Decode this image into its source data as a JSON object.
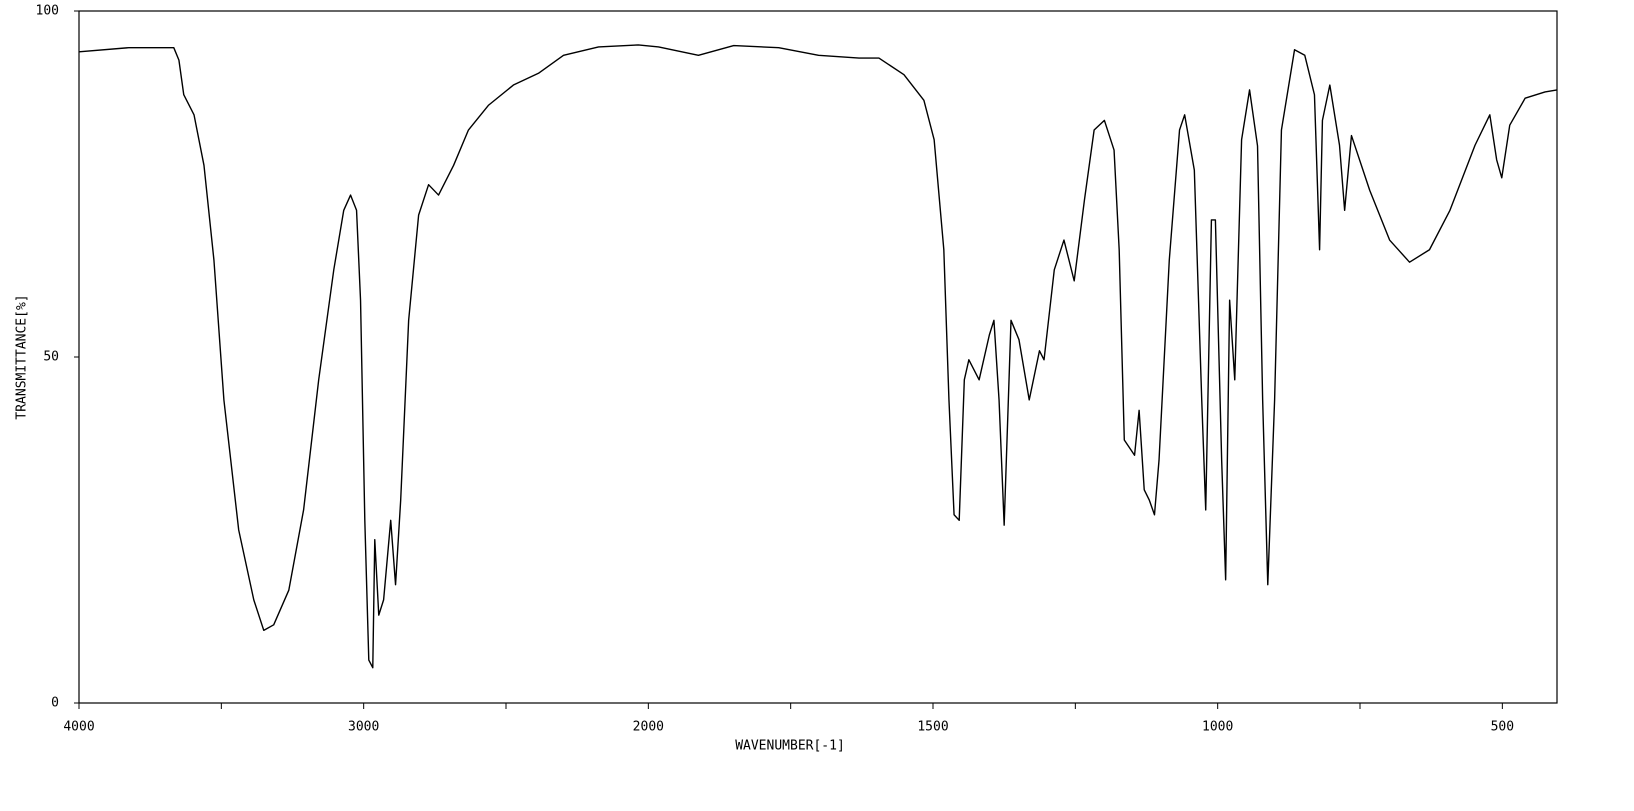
{
  "chart_data": {
    "type": "line",
    "xlabel": "WAVENUMBER[-1]",
    "ylabel": "TRANSMITTANCE[%]",
    "color": "#000000",
    "xlim": [
      4000,
      404
    ],
    "ylim": [
      0,
      100
    ],
    "xticks": [
      4000,
      3000,
      2000,
      1500,
      1000,
      500
    ],
    "xminorticks": [
      3500,
      2500,
      1750,
      1250,
      750
    ],
    "yticks": [
      0,
      50,
      100
    ],
    "x": [
      4000,
      3825,
      3667,
      3649,
      3632,
      3596,
      3561,
      3526,
      3491,
      3439,
      3386,
      3351,
      3316,
      3263,
      3211,
      3158,
      3105,
      3070,
      3046,
      3025,
      3011,
      2996,
      2982,
      2968,
      2961,
      2947,
      2930,
      2905,
      2888,
      2870,
      2842,
      2807,
      2772,
      2737,
      2684,
      2632,
      2561,
      2474,
      2386,
      2298,
      2175,
      2035,
      1982,
      1912,
      1850,
      1771,
      1701,
      1630,
      1595,
      1551,
      1516,
      1498,
      1481,
      1472,
      1463,
      1454,
      1445,
      1437,
      1419,
      1401,
      1393,
      1384,
      1375,
      1363,
      1349,
      1331,
      1313,
      1305,
      1287,
      1270,
      1252,
      1234,
      1217,
      1199,
      1182,
      1173,
      1164,
      1146,
      1138,
      1129,
      1120,
      1111,
      1103,
      1085,
      1067,
      1058,
      1041,
      1028,
      1021,
      1011,
      1004,
      993,
      986,
      979,
      970,
      958,
      944,
      930,
      921,
      912,
      900,
      888,
      865,
      847,
      830,
      821,
      816,
      803,
      786,
      777,
      765,
      733,
      698,
      663,
      628,
      592,
      548,
      522,
      510,
      501,
      487,
      460,
      425,
      404
    ],
    "values": [
      94.1,
      94.7,
      94.7,
      92.9,
      87.9,
      85,
      77.7,
      64,
      43.8,
      25,
      14.9,
      10.5,
      11.3,
      16.3,
      27.9,
      46.7,
      62.6,
      71.2,
      73.4,
      71.2,
      58.2,
      26.4,
      6.2,
      5.1,
      23.6,
      12.7,
      14.9,
      26.4,
      17.1,
      29.3,
      55.3,
      70.5,
      74.9,
      73.4,
      77.7,
      82.8,
      86.4,
      89.3,
      91,
      93.6,
      94.8,
      95.1,
      94.8,
      93.6,
      95,
      94.7,
      93.6,
      93.2,
      93.2,
      90.8,
      87.1,
      81.4,
      65.5,
      43.8,
      27.2,
      26.4,
      46.7,
      49.6,
      46.7,
      53.2,
      55.3,
      43.8,
      25.7,
      55.3,
      52.5,
      43.8,
      50.9,
      49.6,
      62.6,
      66.9,
      61,
      72.7,
      82.8,
      84.2,
      79.9,
      65.5,
      38,
      35.8,
      42.3,
      30.8,
      29.3,
      27.2,
      35.1,
      64,
      82.8,
      85,
      77,
      43.8,
      27.9,
      69.8,
      69.8,
      35.1,
      17.8,
      58.2,
      46.7,
      81.4,
      88.6,
      80.5,
      43.8,
      17.1,
      43.8,
      82.8,
      94.4,
      93.6,
      87.9,
      65.5,
      84.2,
      89.3,
      80.6,
      71.2,
      82,
      74.1,
      66.9,
      63.7,
      65.5,
      71.2,
      80.6,
      85,
      78.5,
      75.9,
      83.5,
      87.4,
      88.3,
      88.6
    ]
  }
}
